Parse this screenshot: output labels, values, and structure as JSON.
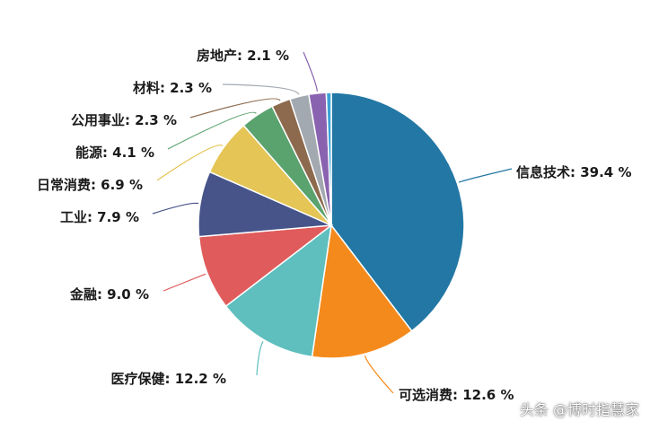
{
  "chart_data": {
    "type": "pie",
    "title": "",
    "unit": "%",
    "slices": [
      {
        "label": "信息技术",
        "value": 39.4,
        "color": "#2277a4"
      },
      {
        "label": "可选消费",
        "value": 12.6,
        "color": "#f58a1c"
      },
      {
        "label": "医疗保健",
        "value": 12.2,
        "color": "#5fbebe"
      },
      {
        "label": "金融",
        "value": 9.0,
        "color": "#e05b5b"
      },
      {
        "label": "工业",
        "value": 7.9,
        "color": "#475489"
      },
      {
        "label": "日常消费",
        "value": 6.9,
        "color": "#e4c555"
      },
      {
        "label": "能源",
        "value": 4.1,
        "color": "#5aa36f"
      },
      {
        "label": "公用事业",
        "value": 2.3,
        "color": "#8d6a4d"
      },
      {
        "label": "材料",
        "value": 2.3,
        "color": "#a3a9b0"
      },
      {
        "label": "房地产",
        "value": 2.1,
        "color": "#8a63b0"
      },
      {
        "label": "",
        "value": 0.6,
        "color": "#3aa3d6"
      }
    ],
    "label_texts": [
      "信息技术: 39.4 %",
      "可选消费: 12.6 %",
      "医疗保健: 12.2 %",
      "金融: 9.0 %",
      "工业: 7.9 %",
      "日常消费: 6.9 %",
      "能源: 4.1 %",
      "公用事业: 2.3 %",
      "材料: 2.3 %",
      "房地产: 2.1 %",
      ""
    ]
  },
  "watermark": "头条 @博时指慧家"
}
